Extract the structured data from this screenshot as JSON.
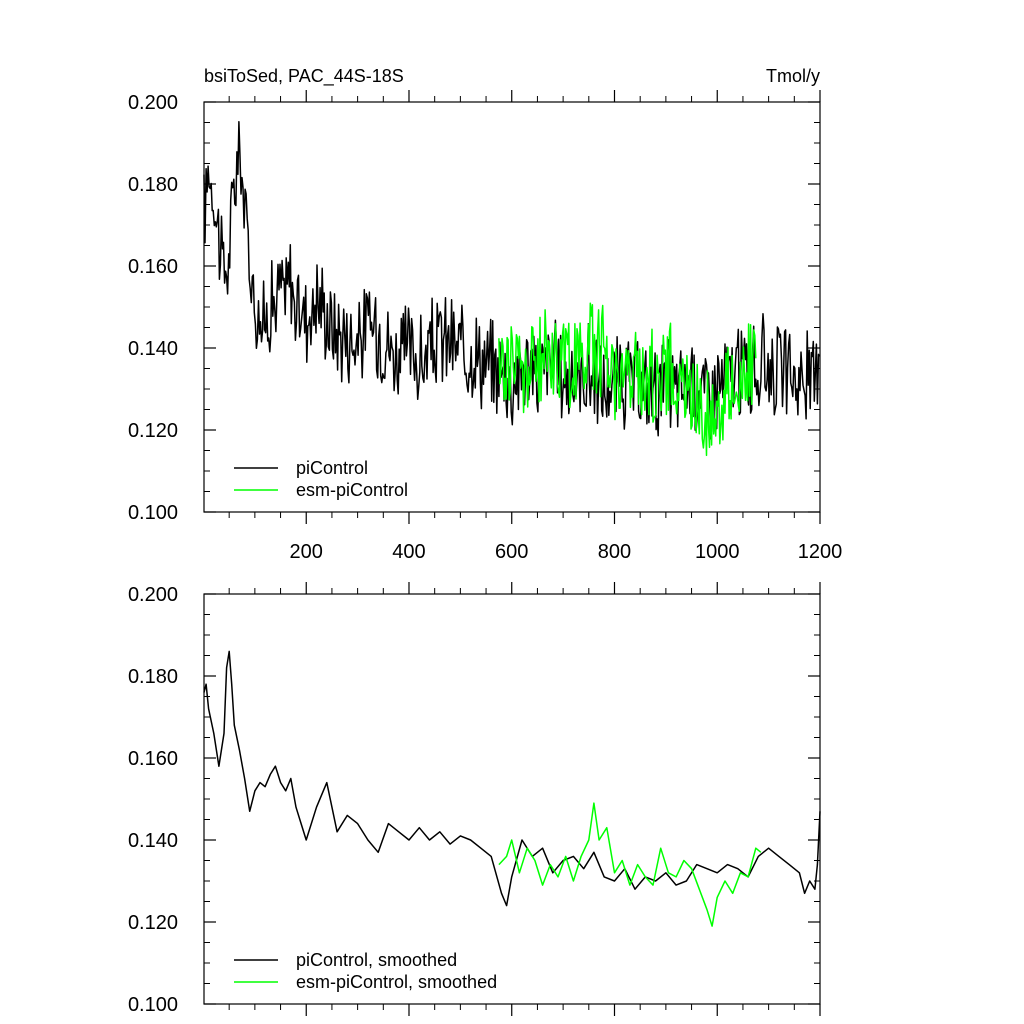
{
  "chart_data": [
    {
      "type": "line",
      "title_left": "bsiToSed, PAC_44S-18S",
      "title_right": "Tmol/y",
      "xlim": [
        1,
        1200
      ],
      "ylim": [
        0.1,
        0.2
      ],
      "x_ticks": [
        200,
        400,
        600,
        800,
        1000,
        1200
      ],
      "x_tick_labels": [
        "200",
        "400",
        "600",
        "800",
        "1000",
        "1200"
      ],
      "y_ticks": [
        0.1,
        0.12,
        0.14,
        0.16,
        0.18,
        0.2
      ],
      "y_tick_labels": [
        "0.100",
        "0.120",
        "0.140",
        "0.160",
        "0.180",
        "0.200"
      ],
      "grid": false,
      "legend_position": "bottom-left",
      "series": [
        {
          "name": "piControl",
          "color": "#000000",
          "x": [
            1,
            10,
            20,
            30,
            40,
            50,
            60,
            70,
            80,
            90,
            100,
            110,
            120,
            130,
            140,
            150,
            160,
            170,
            180,
            190,
            200,
            225,
            250,
            275,
            300,
            325,
            350,
            375,
            400,
            425,
            450,
            475,
            500,
            525,
            550,
            575,
            600,
            625,
            650,
            675,
            700,
            725,
            750,
            775,
            800,
            825,
            850,
            875,
            900,
            925,
            950,
            975,
            1000,
            1025,
            1050,
            1075,
            1100,
            1125,
            1150,
            1175,
            1190,
            1200
          ],
          "values": [
            0.172,
            0.185,
            0.178,
            0.168,
            0.158,
            0.162,
            0.18,
            0.188,
            0.175,
            0.16,
            0.152,
            0.148,
            0.145,
            0.152,
            0.15,
            0.155,
            0.153,
            0.158,
            0.148,
            0.15,
            0.148,
            0.152,
            0.145,
            0.143,
            0.142,
            0.146,
            0.143,
            0.138,
            0.14,
            0.136,
            0.141,
            0.142,
            0.139,
            0.14,
            0.136,
            0.135,
            0.132,
            0.136,
            0.134,
            0.137,
            0.133,
            0.131,
            0.135,
            0.13,
            0.131,
            0.132,
            0.129,
            0.13,
            0.131,
            0.13,
            0.132,
            0.129,
            0.131,
            0.133,
            0.135,
            0.134,
            0.137,
            0.134,
            0.133,
            0.132,
            0.131,
            0.147
          ],
          "noise_amplitude": 0.01
        },
        {
          "name": "esm-piControl",
          "color": "#00ff00",
          "x": [
            575,
            600,
            625,
            650,
            675,
            700,
            725,
            750,
            775,
            800,
            825,
            850,
            875,
            900,
            925,
            950,
            975,
            990,
            1000,
            1025,
            1050,
            1075
          ],
          "values": [
            0.135,
            0.138,
            0.134,
            0.136,
            0.14,
            0.138,
            0.136,
            0.142,
            0.14,
            0.135,
            0.133,
            0.134,
            0.132,
            0.136,
            0.131,
            0.128,
            0.125,
            0.122,
            0.126,
            0.13,
            0.133,
            0.136
          ],
          "noise_amplitude": 0.01
        }
      ]
    },
    {
      "type": "line",
      "xlim": [
        1,
        1200
      ],
      "ylim": [
        0.1,
        0.2
      ],
      "x_ticks": [
        200,
        400,
        600,
        800,
        1000,
        1200
      ],
      "y_ticks": [
        0.1,
        0.12,
        0.14,
        0.16,
        0.18,
        0.2
      ],
      "y_tick_labels": [
        "0.100",
        "0.120",
        "0.140",
        "0.160",
        "0.180",
        "0.200"
      ],
      "grid": false,
      "legend_position": "bottom-left",
      "series": [
        {
          "name": "piControl, smoothed",
          "color": "#000000",
          "x": [
            1,
            5,
            10,
            20,
            30,
            40,
            45,
            50,
            55,
            60,
            70,
            80,
            90,
            100,
            110,
            120,
            130,
            140,
            150,
            160,
            170,
            180,
            190,
            200,
            220,
            240,
            260,
            280,
            300,
            320,
            340,
            360,
            380,
            400,
            420,
            440,
            460,
            480,
            500,
            520,
            540,
            560,
            580,
            590,
            600,
            620,
            640,
            660,
            680,
            700,
            720,
            740,
            760,
            780,
            800,
            820,
            840,
            860,
            880,
            900,
            920,
            940,
            960,
            980,
            1000,
            1020,
            1040,
            1060,
            1080,
            1100,
            1120,
            1140,
            1160,
            1170,
            1180,
            1190,
            1195,
            1200
          ],
          "values": [
            0.176,
            0.178,
            0.172,
            0.166,
            0.158,
            0.166,
            0.182,
            0.186,
            0.178,
            0.168,
            0.162,
            0.155,
            0.147,
            0.152,
            0.154,
            0.153,
            0.156,
            0.158,
            0.154,
            0.152,
            0.155,
            0.148,
            0.144,
            0.14,
            0.148,
            0.154,
            0.142,
            0.146,
            0.144,
            0.14,
            0.137,
            0.144,
            0.142,
            0.14,
            0.143,
            0.14,
            0.142,
            0.139,
            0.141,
            0.14,
            0.138,
            0.136,
            0.127,
            0.124,
            0.131,
            0.14,
            0.136,
            0.138,
            0.132,
            0.135,
            0.136,
            0.133,
            0.137,
            0.131,
            0.13,
            0.133,
            0.128,
            0.131,
            0.13,
            0.132,
            0.129,
            0.13,
            0.134,
            0.133,
            0.132,
            0.134,
            0.133,
            0.131,
            0.136,
            0.138,
            0.136,
            0.134,
            0.132,
            0.127,
            0.13,
            0.128,
            0.134,
            0.147
          ]
        },
        {
          "name": "esm-piControl, smoothed",
          "color": "#00ff00",
          "x": [
            575,
            590,
            600,
            615,
            630,
            645,
            660,
            675,
            690,
            705,
            720,
            735,
            750,
            760,
            770,
            785,
            800,
            815,
            830,
            845,
            860,
            875,
            890,
            905,
            920,
            935,
            950,
            965,
            980,
            990,
            1000,
            1015,
            1030,
            1045,
            1060,
            1075,
            1085
          ],
          "values": [
            0.134,
            0.136,
            0.14,
            0.132,
            0.138,
            0.135,
            0.129,
            0.134,
            0.131,
            0.136,
            0.13,
            0.136,
            0.14,
            0.149,
            0.14,
            0.143,
            0.132,
            0.135,
            0.129,
            0.134,
            0.131,
            0.129,
            0.138,
            0.132,
            0.131,
            0.135,
            0.133,
            0.128,
            0.123,
            0.119,
            0.126,
            0.13,
            0.127,
            0.132,
            0.131,
            0.138,
            0.137
          ]
        }
      ]
    }
  ]
}
